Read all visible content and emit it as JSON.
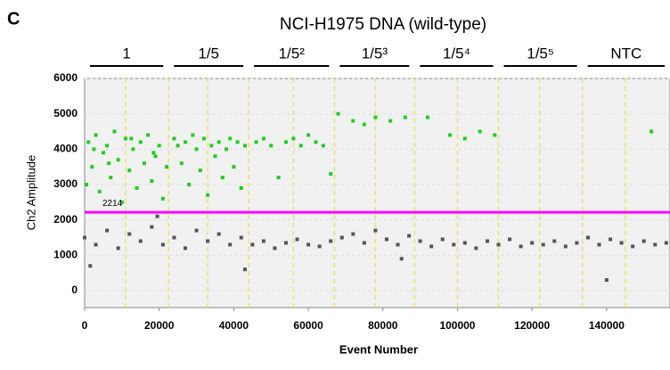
{
  "chart_data": {
    "type": "scatter",
    "panel_label": "C",
    "title": "NCI-H1975 DNA (wild-type)",
    "x_label": "Event Number",
    "y_label": "Ch2 Amplitude",
    "xlim": [
      0,
      157000
    ],
    "ylim": [
      -480,
      6000
    ],
    "xticks": [
      0,
      20000,
      40000,
      60000,
      80000,
      100000,
      120000,
      140000
    ],
    "yticks": [
      0,
      1000,
      2000,
      3000,
      4000,
      5000,
      6000
    ],
    "groups": [
      "1",
      "1/5",
      "1/5²",
      "1/5³",
      "1/5⁴",
      "1/5⁵",
      "NTC"
    ],
    "well_dividers": [
      11000,
      22500,
      33000,
      44000,
      56000,
      67000,
      78000,
      88500,
      100000,
      111000,
      122000,
      133500,
      145000
    ],
    "threshold": 2214,
    "threshold_color": "#ff00ff",
    "divider_color": "#f0e060",
    "series": [
      {
        "name": "positive",
        "color": "#22cc22",
        "x": [
          1000,
          2000,
          3000,
          4000,
          5000,
          6000,
          7000,
          8000,
          9000,
          10000,
          11000,
          12000,
          13000,
          14000,
          15000,
          16000,
          17000,
          18000,
          19000,
          20000,
          21000,
          22000,
          500,
          2500,
          6500,
          12500,
          18500,
          24000,
          25000,
          26000,
          27000,
          28000,
          29000,
          30000,
          31000,
          32000,
          33000,
          34000,
          35000,
          36000,
          37000,
          38000,
          39000,
          40000,
          41000,
          42000,
          43000,
          46000,
          48000,
          50000,
          52000,
          54000,
          56000,
          58000,
          60000,
          62000,
          64000,
          66000,
          68000,
          72000,
          75000,
          78000,
          82000,
          86000,
          92000,
          98000,
          102000,
          106000,
          110000,
          152000
        ],
        "values": [
          4200,
          3500,
          4400,
          2800,
          3900,
          4100,
          3200,
          4500,
          3700,
          2500,
          4300,
          3400,
          4000,
          2900,
          4200,
          3600,
          4400,
          3100,
          3800,
          4100,
          2600,
          3500,
          3000,
          4000,
          3600,
          4300,
          3900,
          4300,
          4100,
          3600,
          4200,
          3000,
          4400,
          4000,
          3400,
          4300,
          2700,
          4100,
          3800,
          4200,
          3200,
          4000,
          4300,
          3500,
          4200,
          2900,
          4100,
          4200,
          4300,
          4100,
          3200,
          4200,
          4300,
          4100,
          4400,
          4200,
          4100,
          3300,
          5000,
          4800,
          4700,
          4900,
          4800,
          4900,
          4900,
          4400,
          4300,
          4500,
          4400,
          4500
        ]
      },
      {
        "name": "negative",
        "color": "#555555",
        "x": [
          0,
          3000,
          6000,
          9000,
          12000,
          15000,
          18000,
          21000,
          24000,
          27000,
          30000,
          33000,
          36000,
          39000,
          42000,
          45000,
          48000,
          51000,
          54000,
          57000,
          60000,
          63000,
          66000,
          69000,
          72000,
          75000,
          78000,
          81000,
          84000,
          87000,
          90000,
          93000,
          96000,
          99000,
          102000,
          105000,
          108000,
          111000,
          114000,
          117000,
          120000,
          123000,
          126000,
          129000,
          132000,
          135000,
          138000,
          141000,
          144000,
          147000,
          150000,
          153000,
          156000,
          1500,
          19500,
          43000,
          85000,
          140000
        ],
        "values": [
          1500,
          1300,
          1700,
          1200,
          1600,
          1400,
          1800,
          1300,
          1500,
          1200,
          1700,
          1400,
          1600,
          1300,
          1500,
          1300,
          1400,
          1200,
          1350,
          1450,
          1300,
          1250,
          1400,
          1500,
          1600,
          1350,
          1700,
          1450,
          1300,
          1550,
          1400,
          1250,
          1450,
          1300,
          1350,
          1200,
          1400,
          1300,
          1450,
          1250,
          1350,
          1300,
          1400,
          1250,
          1350,
          1500,
          1300,
          1450,
          1350,
          1250,
          1400,
          1300,
          1350,
          700,
          2100,
          600,
          900,
          300
        ]
      }
    ]
  }
}
